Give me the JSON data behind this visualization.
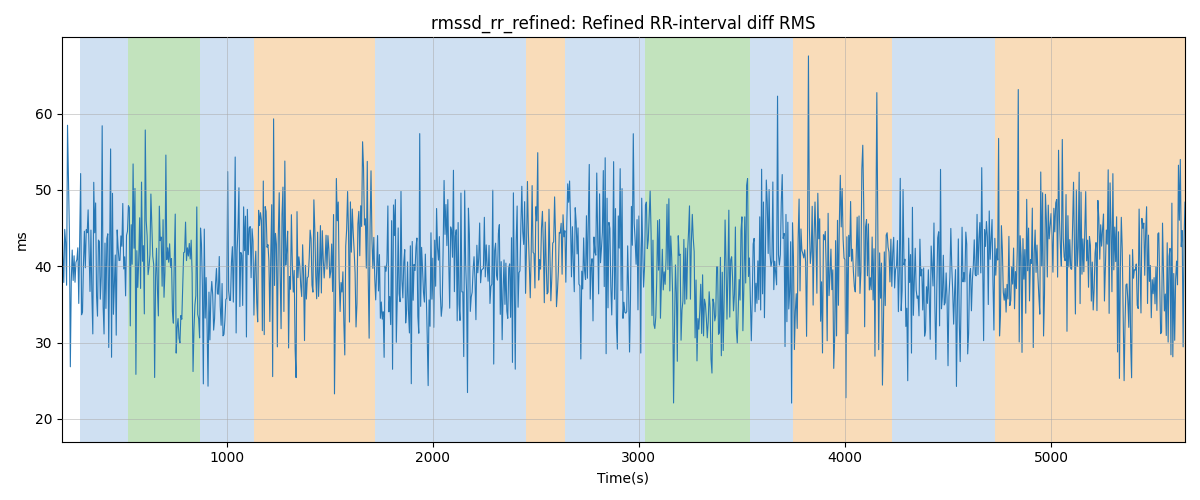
{
  "title": "rmssd_rr_refined: Refined RR-interval diff RMS",
  "xlabel": "Time(s)",
  "ylabel": "ms",
  "xlim": [
    200,
    5650
  ],
  "ylim": [
    17,
    70
  ],
  "yticks": [
    20,
    30,
    40,
    50,
    60
  ],
  "xticks": [
    1000,
    2000,
    3000,
    4000,
    5000
  ],
  "figsize": [
    12,
    5
  ],
  "dpi": 100,
  "line_color": "#2878b5",
  "line_width": 0.8,
  "grid_color": "#aaaaaa",
  "grid_alpha": 0.6,
  "color_blue": "#a8c8e8",
  "color_green": "#90cc88",
  "color_orange": "#f5c080",
  "band_alpha": 0.55,
  "bands": [
    {
      "xmin": 290,
      "xmax": 520,
      "color": "blue"
    },
    {
      "xmin": 520,
      "xmax": 870,
      "color": "green"
    },
    {
      "xmin": 870,
      "xmax": 1130,
      "color": "blue"
    },
    {
      "xmin": 1130,
      "xmax": 1720,
      "color": "orange"
    },
    {
      "xmin": 1720,
      "xmax": 2450,
      "color": "blue"
    },
    {
      "xmin": 2450,
      "xmax": 2640,
      "color": "orange"
    },
    {
      "xmin": 2640,
      "xmax": 3030,
      "color": "blue"
    },
    {
      "xmin": 3030,
      "xmax": 3540,
      "color": "green"
    },
    {
      "xmin": 3540,
      "xmax": 3750,
      "color": "blue"
    },
    {
      "xmin": 3750,
      "xmax": 4230,
      "color": "orange"
    },
    {
      "xmin": 4230,
      "xmax": 4730,
      "color": "blue"
    },
    {
      "xmin": 4730,
      "xmax": 5650,
      "color": "orange"
    }
  ],
  "seed": 2023,
  "n_points": 1200,
  "t_start": 200,
  "t_end": 5650
}
